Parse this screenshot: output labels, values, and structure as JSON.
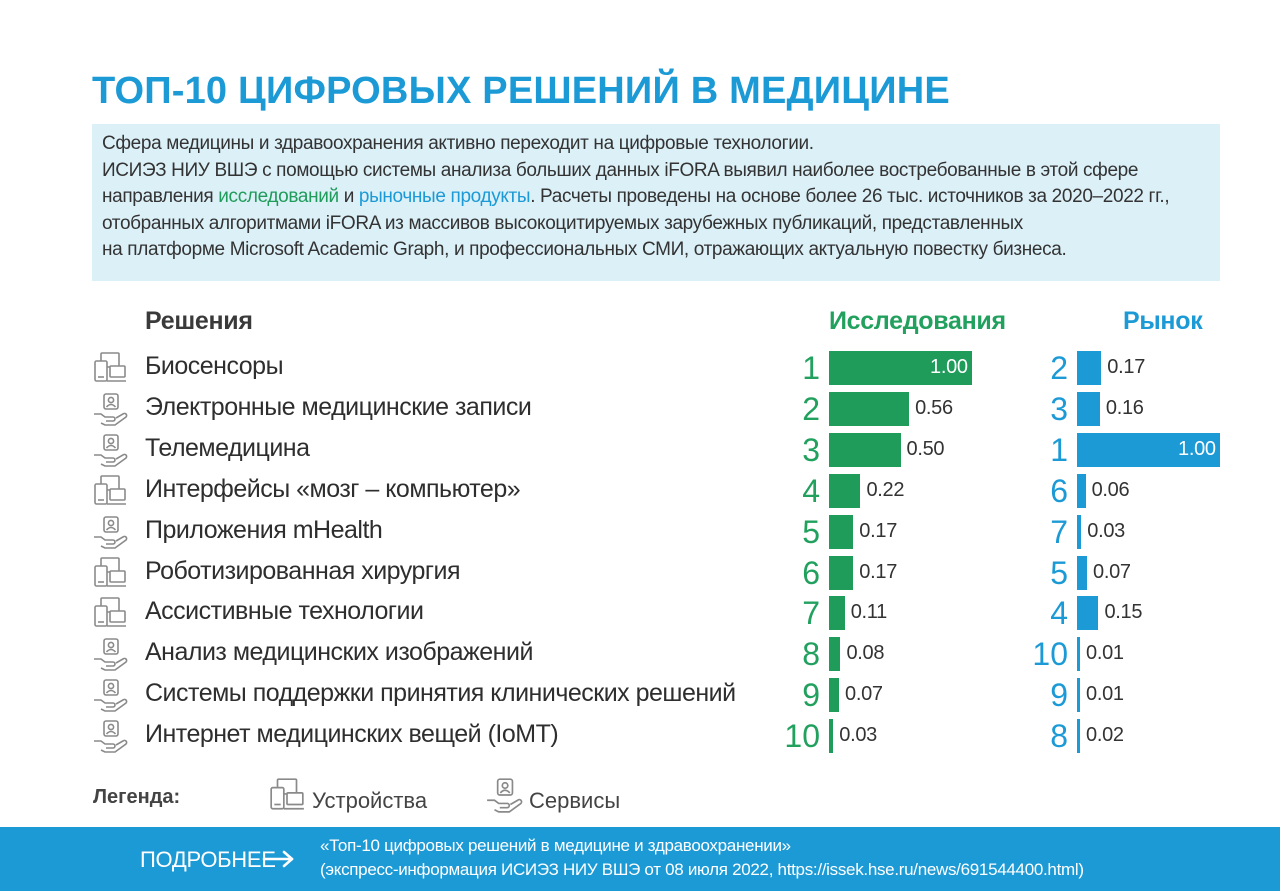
{
  "title": "ТОП-10 ЦИФРОВЫХ РЕШЕНИЙ В МЕДИЦИНЕ",
  "intro": {
    "line1": "Сфера медицины и здравоохранения активно переходит на цифровые технологии.",
    "line2": "ИСИЭЗ НИУ ВШЭ с помощью системы анализа больших данных iFORA выявил наиболее востребованные в этой сфере",
    "line3_pre": "направления ",
    "line3_research": "исследований",
    "line3_and": " и ",
    "line3_market": "рыночные продукты",
    "line3_post": ". Расчеты проведены на основе более 26 тыс. источников за 2020–2022 гг.,",
    "line4": "отобранных алгоритмами iFORA из массивов высокоцитируемых зарубежных публикаций, представленных",
    "line5": "на платформе Microsoft Academic Graph, и профессиональных СМИ, отражающих актуальную повестку бизнеса."
  },
  "colors": {
    "title": "#1c9ad6",
    "research": "#1f9c5a",
    "market": "#1c9ad6",
    "intro_bg": "#dcf0f8",
    "icon": "#8a8a8a"
  },
  "chart_data": {
    "type": "bar",
    "title": "ТОП-10 ЦИФРОВЫХ РЕШЕНИЙ В МЕДИЦИНЕ",
    "headers": {
      "solutions": "Решения",
      "research": "Исследования",
      "market": "Рынок"
    },
    "xlim": [
      0,
      1
    ],
    "categories": [
      "Биосенсоры",
      "Электронные медицинские записи",
      "Телемедицина",
      "Интерфейсы «мозг – компьютер»",
      "Приложения mHealth",
      "Роботизированная хирургия",
      "Ассистивные технологии",
      "Анализ медицинских изображений",
      "Системы поддержки принятия клинических решений",
      "Интернет медицинских вещей (IoMT)"
    ],
    "category_type": [
      "device",
      "service",
      "service",
      "device",
      "service",
      "device",
      "device",
      "service",
      "service",
      "service"
    ],
    "series": [
      {
        "name": "Исследования",
        "ranks": [
          "1",
          "2",
          "3",
          "4",
          "5",
          "6",
          "7",
          "8",
          "9",
          "10"
        ],
        "values": [
          1.0,
          0.56,
          0.5,
          0.22,
          0.17,
          0.17,
          0.11,
          0.08,
          0.07,
          0.03
        ],
        "labels": [
          "1.00",
          "0.56",
          "0.50",
          "0.22",
          "0.17",
          "0.17",
          "0.11",
          "0.08",
          "0.07",
          "0.03"
        ]
      },
      {
        "name": "Рынок",
        "ranks": [
          "2",
          "3",
          "1",
          "6",
          "7",
          "5",
          "4",
          "10",
          "9",
          "8"
        ],
        "values": [
          0.17,
          0.16,
          1.0,
          0.06,
          0.03,
          0.07,
          0.15,
          0.01,
          0.01,
          0.02
        ],
        "labels": [
          "0.17",
          "0.16",
          "1.00",
          "0.06",
          "0.03",
          "0.07",
          "0.15",
          "0.01",
          "0.01",
          "0.02"
        ]
      }
    ]
  },
  "legend": {
    "label": "Легенда:",
    "devices": "Устройства",
    "services": "Сервисы"
  },
  "footer": {
    "more": "ПОДРОБНЕЕ",
    "ref_line1": "«Топ-10 цифровых решений в медицине и здравоохранении»",
    "ref_line2": "(экспресс-информация ИСИЭЗ НИУ ВШЭ от 08 июля 2022, https://issek.hse.ru/news/691544400.html)"
  }
}
